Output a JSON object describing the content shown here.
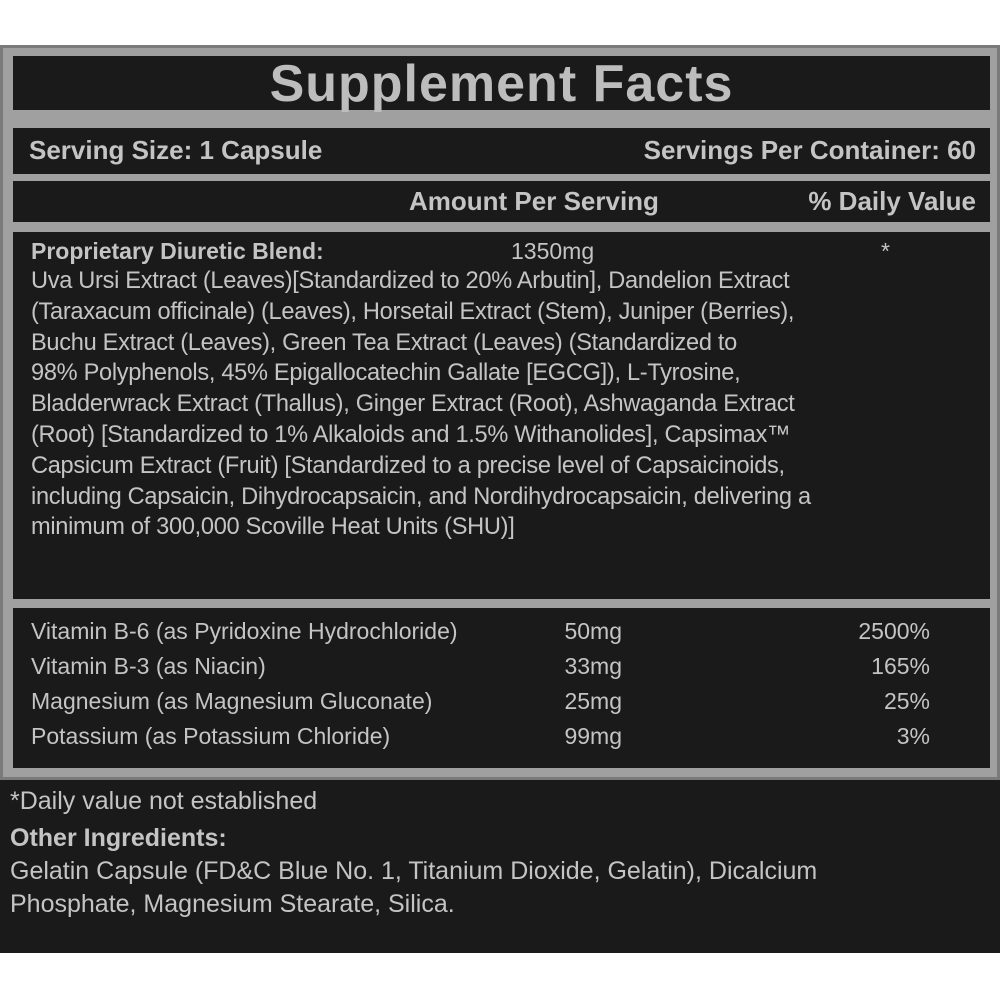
{
  "title": "Supplement Facts",
  "serving": {
    "size": "Serving Size: 1 Capsule",
    "per_container": "Servings Per Container: 60"
  },
  "headers": {
    "amount": "Amount Per Serving",
    "daily_value": "% Daily Value"
  },
  "blend": {
    "name": "Proprietary Diuretic Blend:",
    "amount": "1350mg",
    "dv": "*",
    "lines": [
      "Uva Ursi Extract (Leaves)[Standardized to 20% Arbutin], Dandelion Extract",
      "(Taraxacum officinale) (Leaves), Horsetail Extract (Stem), Juniper (Berries),",
      "Buchu Extract (Leaves), Green Tea Extract (Leaves) (Standardized to",
      "98% Polyphenols, 45% Epigallocatechin Gallate [EGCG]), L-Tyrosine,",
      "Bladderwrack Extract (Thallus), Ginger Extract (Root), Ashwaganda Extract",
      "(Root) [Standardized to 1% Alkaloids and 1.5% Withanolides], Capsimax™",
      "Capsicum Extract (Fruit) [Standardized to a precise level of Capsaicinoids,",
      "including Capsaicin, Dihydrocapsaicin, and Nordihydrocapsaicin, delivering a",
      "minimum of 300,000 Scoville Heat Units (SHU)]"
    ]
  },
  "nutrients": [
    {
      "name": "Vitamin B-6 (as Pyridoxine Hydrochloride)",
      "amount": "50mg",
      "dv": "2500%"
    },
    {
      "name": "Vitamin B-3 (as Niacin)",
      "amount": "33mg",
      "dv": "165%"
    },
    {
      "name": "Magnesium (as Magnesium Gluconate)",
      "amount": "25mg",
      "dv": "25%"
    },
    {
      "name": "Potassium (as Potassium Chloride)",
      "amount": "99mg",
      "dv": "3%"
    }
  ],
  "footnote": "*Daily value not established",
  "other": {
    "heading": "Other Ingredients:",
    "lines": [
      "Gelatin Capsule (FD&C Blue No. 1, Titanium Dioxide, Gelatin), Dicalcium",
      "Phosphate, Magnesium Stearate, Silica."
    ]
  }
}
